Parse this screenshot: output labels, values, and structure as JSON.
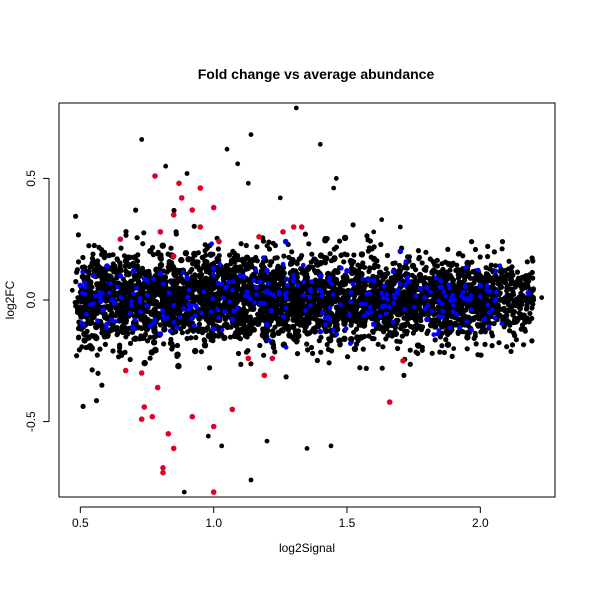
{
  "chart_data": {
    "type": "scatter",
    "title": "Fold change vs average abundance",
    "xlabel": "log2Signal",
    "ylabel": "log2FC",
    "xlim": [
      0.42,
      2.28
    ],
    "ylim": [
      -0.81,
      0.81
    ],
    "xticks": [
      0.5,
      1.0,
      1.5,
      2.0
    ],
    "xtick_labels": [
      "0.5",
      "1.0",
      "1.5",
      "2.0"
    ],
    "yticks": [
      -0.5,
      0.0,
      0.5
    ],
    "ytick_labels": [
      "-0.5",
      "0.0",
      "0.5"
    ],
    "grid": false,
    "legend": "none",
    "colors": {
      "black": "#000000",
      "blue": "#0000ff",
      "red": "#e0002a"
    },
    "series": [
      {
        "color": "#000000",
        "points_note": "dense cloud; representative outliers",
        "values": [
          [
            0.73,
            0.66
          ],
          [
            1.14,
            0.68
          ],
          [
            1.31,
            0.79
          ],
          [
            1.4,
            0.64
          ],
          [
            1.05,
            0.62
          ],
          [
            1.46,
            0.5
          ],
          [
            1.45,
            0.46
          ],
          [
            1.13,
            0.48
          ],
          [
            1.09,
            0.56
          ],
          [
            0.9,
            0.52
          ],
          [
            0.82,
            0.55
          ],
          [
            1.63,
            0.33
          ],
          [
            1.25,
            0.42
          ],
          [
            1.7,
            0.3
          ],
          [
            1.6,
            0.28
          ],
          [
            0.89,
            -0.79
          ],
          [
            1.14,
            -0.74
          ],
          [
            1.35,
            -0.61
          ],
          [
            1.44,
            -0.6
          ],
          [
            1.03,
            -0.6
          ],
          [
            1.2,
            -0.58
          ],
          [
            0.98,
            -0.56
          ],
          [
            1.9,
            -0.2
          ],
          [
            2.03,
            0.03
          ],
          [
            2.1,
            0.02
          ],
          [
            2.17,
            0.01
          ],
          [
            2.2,
            0.0
          ],
          [
            2.23,
            0.01
          ],
          [
            0.48,
            -0.01
          ],
          [
            0.47,
            0.04
          ]
        ]
      },
      {
        "color": "#0000ff",
        "points_note": "highlighted points",
        "values": [
          [
            0.5,
            0.06
          ],
          [
            0.55,
            0.1
          ],
          [
            0.6,
            0.14
          ],
          [
            0.65,
            0.1
          ],
          [
            0.7,
            0.12
          ],
          [
            0.75,
            0.08
          ],
          [
            0.8,
            0.11
          ],
          [
            0.9,
            0.09
          ],
          [
            1.0,
            0.13
          ],
          [
            1.1,
            0.1
          ],
          [
            1.2,
            0.12
          ],
          [
            1.3,
            0.08
          ],
          [
            1.4,
            0.1
          ],
          [
            1.5,
            0.12
          ],
          [
            1.6,
            0.08
          ],
          [
            1.8,
            0.05
          ],
          [
            0.6,
            -0.1
          ],
          [
            0.7,
            -0.12
          ],
          [
            0.8,
            -0.14
          ],
          [
            1.0,
            -0.12
          ],
          [
            1.2,
            -0.1
          ],
          [
            1.4,
            -0.13
          ],
          [
            1.6,
            -0.1
          ],
          [
            1.8,
            -0.08
          ],
          [
            2.0,
            0.06
          ],
          [
            2.18,
            0.03
          ],
          [
            1.27,
            0.24
          ],
          [
            1.7,
            0.2
          ],
          [
            0.62,
            0.0
          ],
          [
            1.07,
            -0.08
          ]
        ]
      },
      {
        "color": "#e0002a",
        "points_note": "highlighted points",
        "values": [
          [
            0.78,
            0.51
          ],
          [
            0.87,
            0.48
          ],
          [
            0.95,
            0.46
          ],
          [
            0.88,
            0.42
          ],
          [
            0.92,
            0.37
          ],
          [
            0.95,
            0.3
          ],
          [
            0.85,
            0.35
          ],
          [
            1.0,
            0.38
          ],
          [
            0.8,
            0.28
          ],
          [
            1.02,
            0.24
          ],
          [
            1.17,
            0.26
          ],
          [
            1.3,
            0.3
          ],
          [
            1.33,
            0.3
          ],
          [
            1.26,
            0.28
          ],
          [
            0.65,
            0.25
          ],
          [
            0.85,
            0.18
          ],
          [
            0.67,
            -0.29
          ],
          [
            0.73,
            -0.3
          ],
          [
            0.79,
            -0.36
          ],
          [
            0.74,
            -0.44
          ],
          [
            0.77,
            -0.48
          ],
          [
            0.73,
            -0.49
          ],
          [
            0.92,
            -0.48
          ],
          [
            1.0,
            -0.52
          ],
          [
            1.07,
            -0.45
          ],
          [
            1.13,
            -0.24
          ],
          [
            1.19,
            -0.31
          ],
          [
            1.66,
            -0.42
          ],
          [
            0.81,
            -0.69
          ],
          [
            0.81,
            -0.71
          ],
          [
            0.83,
            -0.55
          ],
          [
            0.85,
            -0.61
          ],
          [
            1.0,
            -0.79
          ],
          [
            1.22,
            -0.24
          ],
          [
            1.71,
            -0.25
          ]
        ]
      }
    ]
  }
}
